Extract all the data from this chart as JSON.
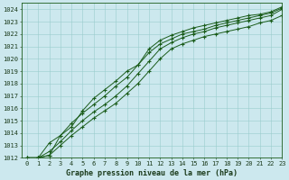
{
  "xlabel": "Graphe pression niveau de la mer (hPa)",
  "xlim": [
    -0.5,
    23
  ],
  "ylim": [
    1012,
    1024.5
  ],
  "yticks": [
    1012,
    1013,
    1014,
    1015,
    1016,
    1017,
    1018,
    1019,
    1020,
    1021,
    1022,
    1023,
    1024
  ],
  "xticks": [
    0,
    1,
    2,
    3,
    4,
    5,
    6,
    7,
    8,
    9,
    10,
    11,
    12,
    13,
    14,
    15,
    16,
    17,
    18,
    19,
    20,
    21,
    22,
    23
  ],
  "background_color": "#cce8ee",
  "grid_color": "#99cccc",
  "line_color": "#1a5c1a",
  "line1_x": [
    0,
    1,
    2,
    3,
    4,
    5,
    6,
    7,
    8,
    9,
    10,
    11,
    12,
    13,
    14,
    15,
    16,
    17,
    18,
    19,
    20,
    21,
    22,
    23
  ],
  "line1_y": [
    1012.0,
    1012.0,
    1012.2,
    1013.0,
    1013.8,
    1014.5,
    1015.2,
    1015.8,
    1016.4,
    1017.2,
    1018.0,
    1019.0,
    1020.0,
    1020.8,
    1021.2,
    1021.5,
    1021.8,
    1022.0,
    1022.2,
    1022.4,
    1022.6,
    1022.9,
    1023.1,
    1023.5
  ],
  "line2_x": [
    0,
    1,
    2,
    3,
    4,
    5,
    6,
    7,
    8,
    9,
    10,
    11,
    12,
    13,
    14,
    15,
    16,
    17,
    18,
    19,
    20,
    21,
    22,
    23
  ],
  "line2_y": [
    1012.0,
    1012.0,
    1012.5,
    1013.3,
    1014.2,
    1015.0,
    1015.7,
    1016.3,
    1017.0,
    1017.8,
    1018.8,
    1019.8,
    1020.8,
    1021.3,
    1021.7,
    1022.0,
    1022.2,
    1022.5,
    1022.7,
    1022.9,
    1023.1,
    1023.3,
    1023.5,
    1024.0
  ],
  "line3_x": [
    0,
    1,
    2,
    3,
    4,
    5,
    6,
    7,
    8,
    9,
    10,
    11,
    12,
    13,
    14,
    15,
    16,
    17,
    18,
    19,
    20,
    21,
    22,
    23
  ],
  "line3_y": [
    1012.0,
    1012.0,
    1013.2,
    1013.8,
    1014.8,
    1015.6,
    1016.3,
    1017.0,
    1017.8,
    1018.5,
    1019.5,
    1020.5,
    1021.2,
    1021.6,
    1022.0,
    1022.2,
    1022.4,
    1022.7,
    1022.9,
    1023.1,
    1023.3,
    1023.5,
    1023.7,
    1024.1
  ],
  "line4_x": [
    1,
    2,
    3,
    4,
    5,
    6,
    7,
    8,
    9,
    10,
    11,
    12,
    13,
    14,
    15,
    16,
    17,
    18,
    19,
    20,
    21,
    22,
    23
  ],
  "line4_y": [
    1012.0,
    1012.2,
    1013.8,
    1014.5,
    1015.8,
    1016.8,
    1017.5,
    1018.2,
    1019.0,
    1019.5,
    1020.8,
    1021.5,
    1021.9,
    1022.2,
    1022.5,
    1022.7,
    1022.9,
    1023.1,
    1023.3,
    1023.5,
    1023.6,
    1023.8,
    1024.2
  ],
  "tick_fontsize": 5.0,
  "xlabel_fontsize": 6.0
}
